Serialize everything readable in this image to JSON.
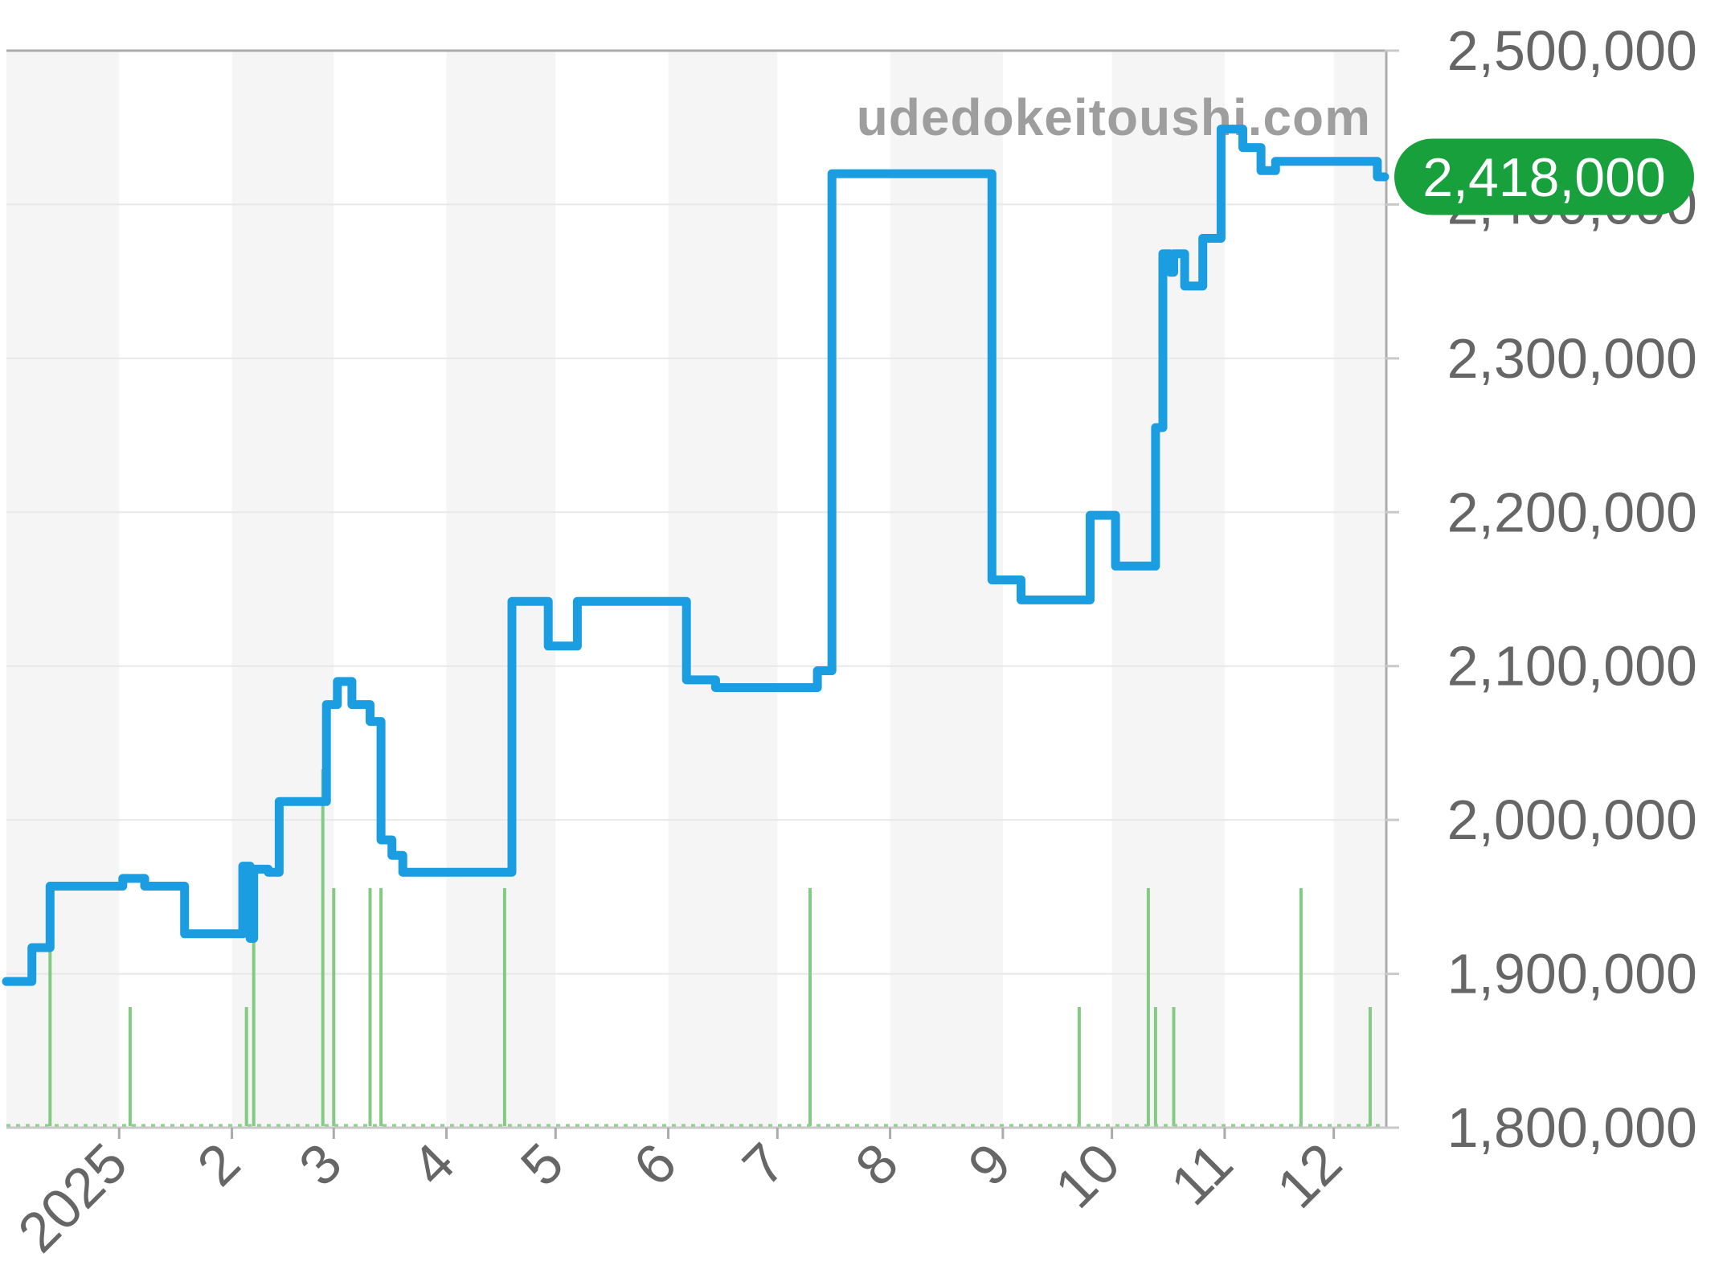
{
  "chart_data": {
    "type": "line+bar",
    "watermark": "udedokeitoushi.com",
    "x_range": [
      "2024-12-01",
      "2025-12-15"
    ],
    "ylim": [
      1800000,
      2500000
    ],
    "grid": true,
    "legend": "none",
    "y_axis_side": "right",
    "y_ticks": [
      {
        "value": 2500000,
        "label": "2,500,000"
      },
      {
        "value": 2400000,
        "label": "2,400,000"
      },
      {
        "value": 2300000,
        "label": "2,300,000"
      },
      {
        "value": 2200000,
        "label": "2,200,000"
      },
      {
        "value": 2100000,
        "label": "2,100,000"
      },
      {
        "value": 2000000,
        "label": "2,000,000"
      },
      {
        "value": 1900000,
        "label": "1,900,000"
      },
      {
        "value": 1800000,
        "label": "1,800,000"
      }
    ],
    "x_ticks": [
      {
        "date": "2025-01-01",
        "label": "2025"
      },
      {
        "date": "2025-02-01",
        "label": "2"
      },
      {
        "date": "2025-03-01",
        "label": "3"
      },
      {
        "date": "2025-04-01",
        "label": "4"
      },
      {
        "date": "2025-05-01",
        "label": "5"
      },
      {
        "date": "2025-06-01",
        "label": "6"
      },
      {
        "date": "2025-07-01",
        "label": "7"
      },
      {
        "date": "2025-08-01",
        "label": "8"
      },
      {
        "date": "2025-09-01",
        "label": "9"
      },
      {
        "date": "2025-10-01",
        "label": "10"
      },
      {
        "date": "2025-11-01",
        "label": "11"
      },
      {
        "date": "2025-12-01",
        "label": "12"
      }
    ],
    "series": [
      {
        "name": "price",
        "type": "step-line",
        "color": "#1b9de2",
        "points": [
          [
            "2024-12-01",
            1895000
          ],
          [
            "2024-12-08",
            1917000
          ],
          [
            "2024-12-13",
            1957000
          ],
          [
            "2025-01-02",
            1962000
          ],
          [
            "2025-01-08",
            1957000
          ],
          [
            "2025-01-19",
            1926000
          ],
          [
            "2025-02-04",
            1970000
          ],
          [
            "2025-02-06",
            1923000
          ],
          [
            "2025-02-07",
            1968000
          ],
          [
            "2025-02-11",
            1966000
          ],
          [
            "2025-02-14",
            2012000
          ],
          [
            "2025-02-27",
            2075000
          ],
          [
            "2025-03-02",
            2090000
          ],
          [
            "2025-03-06",
            2075000
          ],
          [
            "2025-03-11",
            2064000
          ],
          [
            "2025-03-14",
            1987000
          ],
          [
            "2025-03-17",
            1977000
          ],
          [
            "2025-03-20",
            1966000
          ],
          [
            "2025-04-19",
            2142000
          ],
          [
            "2025-04-29",
            2113000
          ],
          [
            "2025-05-07",
            2142000
          ],
          [
            "2025-06-06",
            2091000
          ],
          [
            "2025-06-14",
            2086000
          ],
          [
            "2025-07-12",
            2097000
          ],
          [
            "2025-07-16",
            2420000
          ],
          [
            "2025-08-29",
            2156000
          ],
          [
            "2025-09-06",
            2143000
          ],
          [
            "2025-09-25",
            2198000
          ],
          [
            "2025-10-02",
            2165000
          ],
          [
            "2025-10-13",
            2255000
          ],
          [
            "2025-10-15",
            2368000
          ],
          [
            "2025-10-17",
            2356000
          ],
          [
            "2025-10-18",
            2368000
          ],
          [
            "2025-10-21",
            2347000
          ],
          [
            "2025-10-26",
            2378000
          ],
          [
            "2025-10-31",
            2449000
          ],
          [
            "2025-11-06",
            2437000
          ],
          [
            "2025-11-11",
            2422000
          ],
          [
            "2025-11-15",
            2428000
          ],
          [
            "2025-12-13",
            2418000
          ]
        ]
      },
      {
        "name": "volume",
        "type": "bar",
        "color": "#83ca83",
        "points": [
          [
            "2024-12-13",
            2
          ],
          [
            "2025-01-04",
            1
          ],
          [
            "2025-02-05",
            1
          ],
          [
            "2025-02-07",
            2
          ],
          [
            "2025-02-26",
            3
          ],
          [
            "2025-03-01",
            2
          ],
          [
            "2025-03-11",
            2
          ],
          [
            "2025-03-14",
            2
          ],
          [
            "2025-04-17",
            2
          ],
          [
            "2025-07-10",
            2
          ],
          [
            "2025-09-22",
            1
          ],
          [
            "2025-10-11",
            2
          ],
          [
            "2025-10-13",
            1
          ],
          [
            "2025-10-18",
            1
          ],
          [
            "2025-11-22",
            2
          ],
          [
            "2025-12-11",
            1
          ]
        ]
      }
    ],
    "badge": {
      "label": "2,418,000",
      "value": 2418000,
      "fill": "#17a03c",
      "text_color": "#ffffff"
    },
    "colors": {
      "band": "#f5f5f5",
      "gridline": "#e8e8e8",
      "border": "#ababab",
      "axis_line": "#c9c9c9",
      "tick": "#ababab",
      "label_text": "#666666",
      "baseline_dash": "#8fd08f"
    }
  }
}
